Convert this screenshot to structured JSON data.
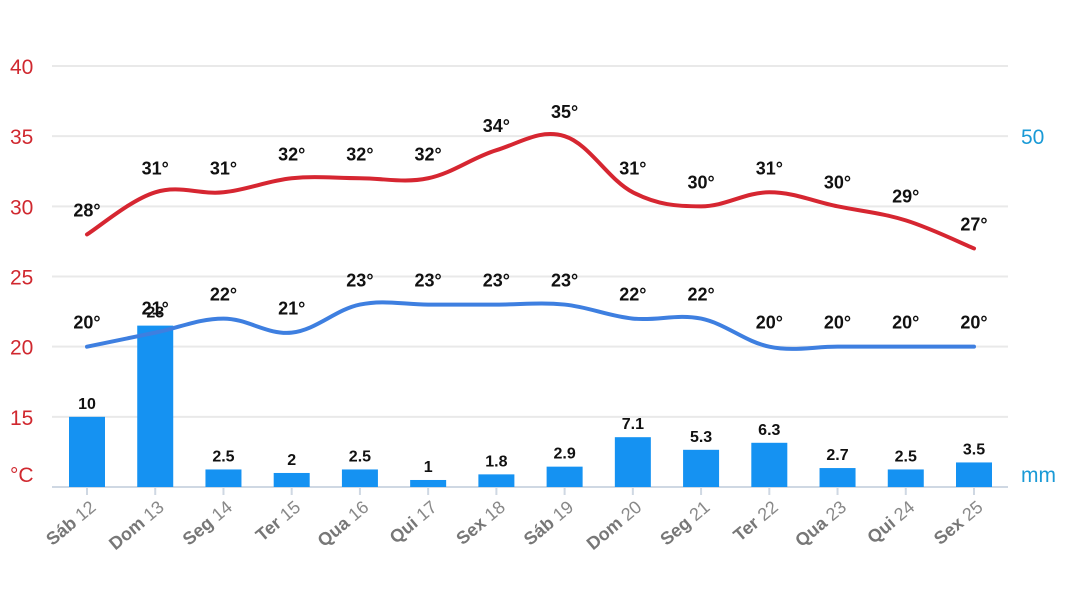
{
  "chart_data": {
    "type": "line",
    "categories": [
      {
        "day": "Sáb",
        "date": "12"
      },
      {
        "day": "Dom",
        "date": "13"
      },
      {
        "day": "Seg",
        "date": "14"
      },
      {
        "day": "Ter",
        "date": "15"
      },
      {
        "day": "Qua",
        "date": "16"
      },
      {
        "day": "Qui",
        "date": "17"
      },
      {
        "day": "Sex",
        "date": "18"
      },
      {
        "day": "Sáb",
        "date": "19"
      },
      {
        "day": "Dom",
        "date": "20"
      },
      {
        "day": "Seg",
        "date": "21"
      },
      {
        "day": "Ter",
        "date": "22"
      },
      {
        "day": "Qua",
        "date": "23"
      },
      {
        "day": "Qui",
        "date": "24"
      },
      {
        "day": "Sex",
        "date": "25"
      }
    ],
    "series": [
      {
        "type": "line",
        "color": "#d62631",
        "values": [
          28,
          31,
          31,
          32,
          32,
          32,
          34,
          35,
          31,
          30,
          31,
          30,
          29,
          27
        ],
        "labels": [
          "28°",
          "31°",
          "31°",
          "32°",
          "32°",
          "32°",
          "34°",
          "35°",
          "31°",
          "30°",
          "31°",
          "30°",
          "29°",
          "27°"
        ]
      },
      {
        "type": "line",
        "color": "#3e7fe0",
        "values": [
          20,
          21,
          22,
          21,
          23,
          23,
          23,
          23,
          22,
          22,
          20,
          20,
          20,
          20
        ],
        "labels": [
          "20°",
          "21°",
          "22°",
          "21°",
          "23°",
          "23°",
          "23°",
          "23°",
          "22°",
          "22°",
          "20°",
          "20°",
          "20°",
          "20°"
        ]
      },
      {
        "type": "bar",
        "color": "#1592f2",
        "values": [
          10,
          23,
          2.5,
          2,
          2.5,
          1,
          1.8,
          2.9,
          7.1,
          5.3,
          6.3,
          2.7,
          2.5,
          3.5
        ],
        "labels": [
          "10",
          "23",
          "2.5",
          "2",
          "2.5",
          "1",
          "1.8",
          "2.9",
          "7.1",
          "5.3",
          "6.3",
          "2.7",
          "2.5",
          "3.5"
        ]
      }
    ],
    "y_left": {
      "ticks": [
        "40",
        "35",
        "30",
        "25",
        "20",
        "15"
      ],
      "unit_label": "°C",
      "range": [
        10,
        40
      ]
    },
    "y_right": {
      "ticks": [
        "50"
      ],
      "unit_label": "mm",
      "range": [
        0,
        60
      ]
    },
    "grid": true,
    "colors": {
      "axis_left": "#d0282f",
      "axis_right": "#1a9ad6",
      "grid": "#e9e9e9"
    }
  }
}
